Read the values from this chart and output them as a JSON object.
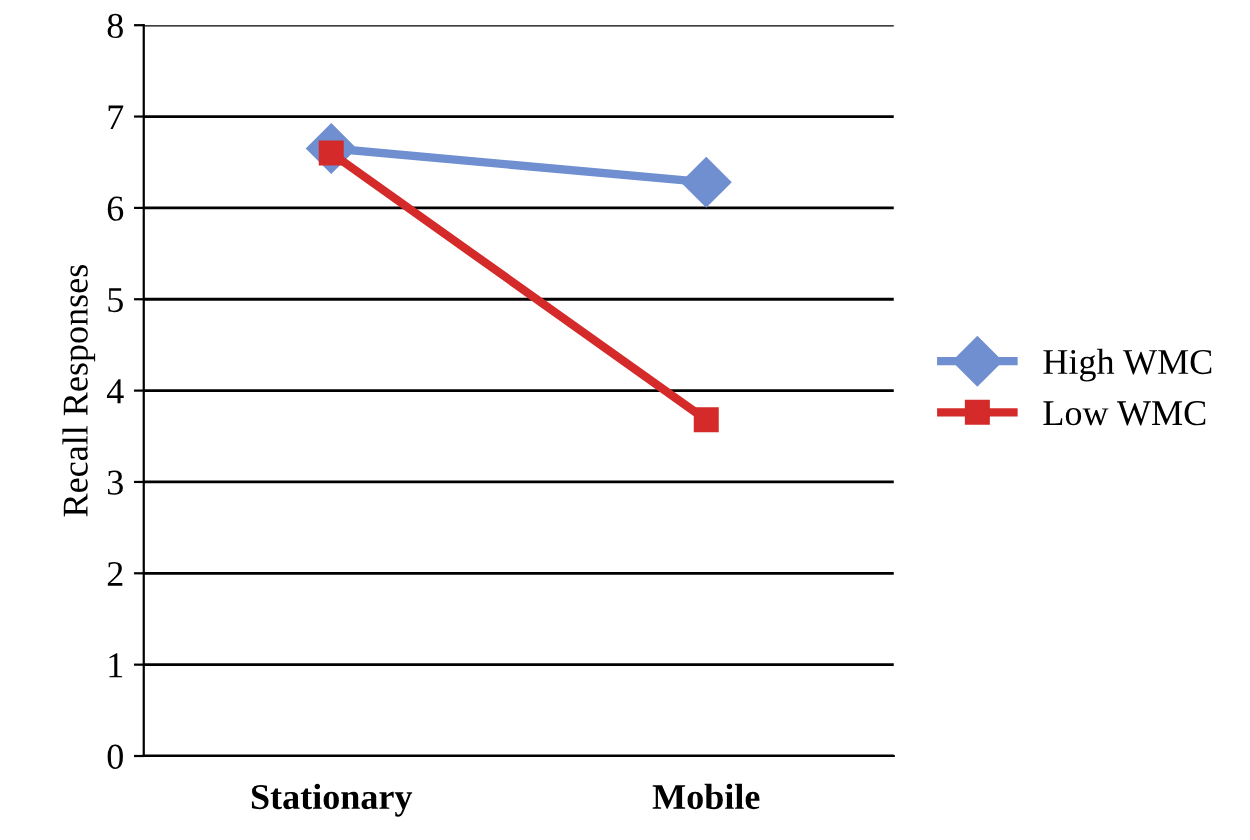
{
  "chart_data": {
    "type": "line",
    "ylabel": "Recall Responses",
    "categories": [
      "Stationary",
      "Mobile"
    ],
    "series": [
      {
        "name": "High WMC",
        "color": "#6f8fd0",
        "marker": "diamond",
        "values": [
          6.65,
          6.28
        ]
      },
      {
        "name": "Low WMC",
        "color": "#d42a2a",
        "marker": "square",
        "values": [
          6.6,
          3.68
        ]
      }
    ],
    "ylim": [
      0,
      8
    ],
    "yticks": [
      0,
      1,
      2,
      3,
      4,
      5,
      6,
      7,
      8
    ],
    "grid": "y",
    "legend": "right"
  }
}
